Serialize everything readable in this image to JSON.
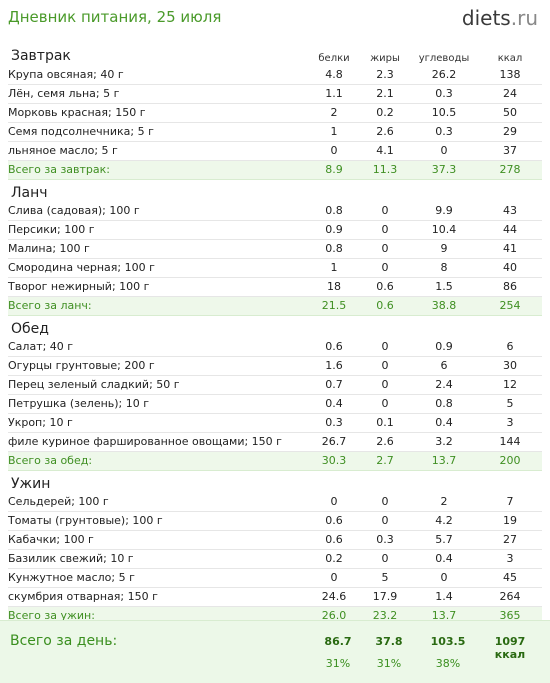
{
  "header": {
    "title": "Дневник питания, 25 июля",
    "logo_main": "diets",
    "logo_tld": ".ru"
  },
  "columns": {
    "protein": "белки",
    "fat": "жиры",
    "carbs": "углеводы",
    "kcal": "ккал"
  },
  "meals": [
    {
      "name": "Завтрак",
      "items": [
        {
          "food": "Крупа овсяная; 40 г",
          "protein": "4.8",
          "fat": "2.3",
          "carbs": "26.2",
          "kcal": "138"
        },
        {
          "food": "Лён, семя льна; 5 г",
          "protein": "1.1",
          "fat": "2.1",
          "carbs": "0.3",
          "kcal": "24"
        },
        {
          "food": "Морковь красная; 150 г",
          "protein": "2",
          "fat": "0.2",
          "carbs": "10.5",
          "kcal": "50"
        },
        {
          "food": "Семя подсолнечника; 5 г",
          "protein": "1",
          "fat": "2.6",
          "carbs": "0.3",
          "kcal": "29"
        },
        {
          "food": "льняное масло; 5 г",
          "protein": "0",
          "fat": "4.1",
          "carbs": "0",
          "kcal": "37"
        }
      ],
      "total": {
        "label": "Всего за завтрак:",
        "protein": "8.9",
        "fat": "11.3",
        "carbs": "37.3",
        "kcal": "278"
      }
    },
    {
      "name": "Ланч",
      "items": [
        {
          "food": "Слива (садовая); 100 г",
          "protein": "0.8",
          "fat": "0",
          "carbs": "9.9",
          "kcal": "43"
        },
        {
          "food": "Персики; 100 г",
          "protein": "0.9",
          "fat": "0",
          "carbs": "10.4",
          "kcal": "44"
        },
        {
          "food": "Малина; 100 г",
          "protein": "0.8",
          "fat": "0",
          "carbs": "9",
          "kcal": "41"
        },
        {
          "food": "Смородина черная; 100 г",
          "protein": "1",
          "fat": "0",
          "carbs": "8",
          "kcal": "40"
        },
        {
          "food": "Творог нежирный; 100 г",
          "protein": "18",
          "fat": "0.6",
          "carbs": "1.5",
          "kcal": "86"
        }
      ],
      "total": {
        "label": "Всего за ланч:",
        "protein": "21.5",
        "fat": "0.6",
        "carbs": "38.8",
        "kcal": "254"
      }
    },
    {
      "name": "Обед",
      "items": [
        {
          "food": "Салат; 40 г",
          "protein": "0.6",
          "fat": "0",
          "carbs": "0.9",
          "kcal": "6"
        },
        {
          "food": "Огурцы грунтовые; 200 г",
          "protein": "1.6",
          "fat": "0",
          "carbs": "6",
          "kcal": "30"
        },
        {
          "food": "Перец зеленый сладкий; 50 г",
          "protein": "0.7",
          "fat": "0",
          "carbs": "2.4",
          "kcal": "12"
        },
        {
          "food": "Петрушка (зелень); 10 г",
          "protein": "0.4",
          "fat": "0",
          "carbs": "0.8",
          "kcal": "5"
        },
        {
          "food": "Укроп; 10 г",
          "protein": "0.3",
          "fat": "0.1",
          "carbs": "0.4",
          "kcal": "3"
        },
        {
          "food": "филе куриное фаршированное овощами; 150 г",
          "protein": "26.7",
          "fat": "2.6",
          "carbs": "3.2",
          "kcal": "144"
        }
      ],
      "total": {
        "label": "Всего за обед:",
        "protein": "30.3",
        "fat": "2.7",
        "carbs": "13.7",
        "kcal": "200"
      }
    },
    {
      "name": "Ужин",
      "items": [
        {
          "food": "Сельдерей; 100 г",
          "protein": "0",
          "fat": "0",
          "carbs": "2",
          "kcal": "7"
        },
        {
          "food": "Томаты (грунтовые); 100 г",
          "protein": "0.6",
          "fat": "0",
          "carbs": "4.2",
          "kcal": "19"
        },
        {
          "food": "Кабачки; 100 г",
          "protein": "0.6",
          "fat": "0.3",
          "carbs": "5.7",
          "kcal": "27"
        },
        {
          "food": "Базилик свежий; 10 г",
          "protein": "0.2",
          "fat": "0",
          "carbs": "0.4",
          "kcal": "3"
        },
        {
          "food": "Кунжутное масло; 5 г",
          "protein": "0",
          "fat": "5",
          "carbs": "0",
          "kcal": "45"
        },
        {
          "food": "скумбрия отварная; 150 г",
          "protein": "24.6",
          "fat": "17.9",
          "carbs": "1.4",
          "kcal": "264"
        }
      ],
      "total": {
        "label": "Всего за ужин:",
        "protein": "26.0",
        "fat": "23.2",
        "carbs": "13.7",
        "kcal": "365"
      }
    }
  ],
  "day_total": {
    "label": "Всего за день:",
    "protein": "86.7",
    "fat": "37.8",
    "carbs": "103.5",
    "kcal": "1097 ккал",
    "protein_pct": "31%",
    "fat_pct": "31%",
    "carbs_pct": "38%"
  }
}
